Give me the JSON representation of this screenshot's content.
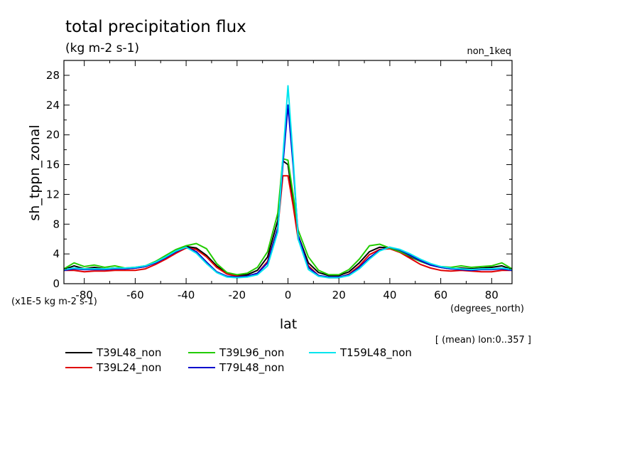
{
  "title": "total precipitation flux",
  "units": "(kg m-2 s-1)",
  "run_label": "non_1keq",
  "scale_note": "(x1E-5 kg m-2 s-1)",
  "x_units": "(degrees_north)",
  "mean_note": "[ (mean) lon:0..357 ]",
  "chart_data": {
    "type": "line",
    "title": "total precipitation flux",
    "xlabel": "lat",
    "ylabel": "sh_tppn_zonal",
    "xlim": [
      -88,
      88
    ],
    "ylim": [
      0,
      30
    ],
    "xticks": [
      -80,
      -60,
      -40,
      -20,
      0,
      20,
      40,
      60,
      80
    ],
    "xtick_labels": [
      "-80",
      "-60",
      "-40",
      "-20",
      "0",
      "20",
      "40",
      "60",
      "80"
    ],
    "yticks": [
      0,
      4,
      8,
      12,
      16,
      20,
      24,
      28
    ],
    "ytick_labels": [
      "0",
      "4",
      "8",
      "12",
      "16",
      "20",
      "24",
      "28"
    ],
    "grid": false,
    "legend_position": "bottom",
    "series": [
      {
        "name": "T39L48_non",
        "color": "#000000",
        "x": [
          -88,
          -84,
          -80,
          -76,
          -72,
          -68,
          -64,
          -60,
          -56,
          -52,
          -48,
          -44,
          -40,
          -36,
          -32,
          -28,
          -24,
          -20,
          -16,
          -12,
          -8,
          -4,
          -2,
          0,
          2,
          4,
          8,
          12,
          16,
          20,
          24,
          28,
          32,
          36,
          40,
          44,
          48,
          52,
          56,
          60,
          64,
          68,
          72,
          76,
          80,
          84,
          88
        ],
        "y": [
          1.9,
          2.4,
          2.0,
          2.2,
          2.0,
          2.1,
          2.0,
          2.1,
          2.3,
          2.9,
          3.6,
          4.4,
          5.0,
          4.8,
          3.8,
          2.4,
          1.4,
          1.1,
          1.2,
          1.8,
          3.6,
          8.5,
          16.5,
          16.0,
          11.0,
          6.5,
          2.8,
          1.5,
          1.1,
          1.1,
          1.6,
          2.8,
          4.3,
          4.9,
          4.8,
          4.3,
          3.6,
          3.0,
          2.5,
          2.2,
          2.0,
          2.1,
          2.0,
          2.1,
          2.2,
          2.4,
          1.9
        ]
      },
      {
        "name": "T39L24_non",
        "color": "#e00000",
        "x": [
          -88,
          -84,
          -80,
          -76,
          -72,
          -68,
          -64,
          -60,
          -56,
          -52,
          -48,
          -44,
          -40,
          -36,
          -32,
          -28,
          -24,
          -20,
          -16,
          -12,
          -8,
          -4,
          -2,
          0,
          2,
          4,
          8,
          12,
          16,
          20,
          24,
          28,
          32,
          36,
          40,
          44,
          48,
          52,
          56,
          60,
          64,
          68,
          72,
          76,
          80,
          84,
          88
        ],
        "y": [
          1.8,
          1.8,
          1.6,
          1.7,
          1.7,
          1.8,
          1.8,
          1.8,
          2.0,
          2.6,
          3.3,
          4.1,
          4.8,
          4.6,
          3.6,
          2.2,
          1.3,
          1.0,
          1.0,
          1.4,
          3.0,
          7.5,
          14.5,
          14.5,
          10.5,
          6.0,
          2.4,
          1.1,
          0.8,
          0.8,
          1.3,
          2.4,
          3.9,
          4.6,
          4.7,
          4.2,
          3.4,
          2.6,
          2.1,
          1.8,
          1.7,
          1.8,
          1.7,
          1.6,
          1.6,
          1.8,
          1.8
        ]
      },
      {
        "name": "T39L96_non",
        "color": "#22cc00",
        "x": [
          -88,
          -84,
          -80,
          -76,
          -72,
          -68,
          -64,
          -60,
          -56,
          -52,
          -48,
          -44,
          -40,
          -36,
          -32,
          -28,
          -24,
          -20,
          -16,
          -12,
          -8,
          -4,
          -2,
          0,
          2,
          4,
          8,
          12,
          16,
          20,
          24,
          28,
          32,
          36,
          40,
          44,
          48,
          52,
          56,
          60,
          64,
          68,
          72,
          76,
          80,
          84,
          88
        ],
        "y": [
          2.0,
          2.8,
          2.3,
          2.5,
          2.2,
          2.4,
          2.1,
          2.2,
          2.4,
          3.0,
          3.8,
          4.6,
          5.1,
          5.4,
          4.7,
          2.7,
          1.5,
          1.2,
          1.4,
          2.2,
          4.3,
          9.5,
          16.8,
          16.6,
          12.0,
          7.2,
          3.6,
          1.8,
          1.2,
          1.2,
          1.9,
          3.3,
          5.1,
          5.3,
          4.8,
          4.3,
          3.7,
          3.0,
          2.5,
          2.3,
          2.2,
          2.4,
          2.2,
          2.3,
          2.4,
          2.8,
          2.0
        ]
      },
      {
        "name": "T79L48_non",
        "color": "#0000cc",
        "x": [
          -88,
          -84,
          -80,
          -76,
          -72,
          -68,
          -64,
          -60,
          -56,
          -52,
          -48,
          -44,
          -40,
          -36,
          -32,
          -28,
          -24,
          -20,
          -16,
          -12,
          -8,
          -4,
          -2,
          0,
          2,
          4,
          8,
          12,
          16,
          20,
          24,
          28,
          32,
          36,
          40,
          44,
          48,
          52,
          56,
          60,
          64,
          68,
          72,
          76,
          80,
          84,
          88
        ],
        "y": [
          1.8,
          2.0,
          1.9,
          1.9,
          1.9,
          2.0,
          2.0,
          2.1,
          2.3,
          2.8,
          3.5,
          4.3,
          4.9,
          4.3,
          2.9,
          1.6,
          1.0,
          0.9,
          1.0,
          1.4,
          2.8,
          7.5,
          16.0,
          24.0,
          16.0,
          6.5,
          2.2,
          1.1,
          0.9,
          0.9,
          1.2,
          2.2,
          3.5,
          4.5,
          4.9,
          4.5,
          3.8,
          3.1,
          2.5,
          2.2,
          2.0,
          1.9,
          1.8,
          1.9,
          1.9,
          2.0,
          1.8
        ]
      },
      {
        "name": "T159L48_non",
        "color": "#00e5ee",
        "x": [
          -88,
          -84,
          -80,
          -76,
          -72,
          -68,
          -64,
          -60,
          -56,
          -52,
          -48,
          -44,
          -40,
          -36,
          -32,
          -28,
          -24,
          -20,
          -16,
          -12,
          -8,
          -4,
          -2,
          0,
          2,
          4,
          8,
          12,
          16,
          20,
          24,
          28,
          32,
          36,
          40,
          44,
          48,
          52,
          56,
          60,
          64,
          68,
          72,
          76,
          80,
          84,
          88
        ],
        "y": [
          1.9,
          2.1,
          2.0,
          2.0,
          2.0,
          2.1,
          2.1,
          2.2,
          2.4,
          2.9,
          3.6,
          4.4,
          4.9,
          4.1,
          2.7,
          1.5,
          0.9,
          0.8,
          0.9,
          1.2,
          2.4,
          7.0,
          17.0,
          26.6,
          17.0,
          6.0,
          1.9,
          1.0,
          0.8,
          0.8,
          1.1,
          2.0,
          3.3,
          4.4,
          4.9,
          4.6,
          4.0,
          3.3,
          2.7,
          2.3,
          2.1,
          2.0,
          1.9,
          2.0,
          2.0,
          2.1,
          1.9
        ]
      }
    ]
  }
}
